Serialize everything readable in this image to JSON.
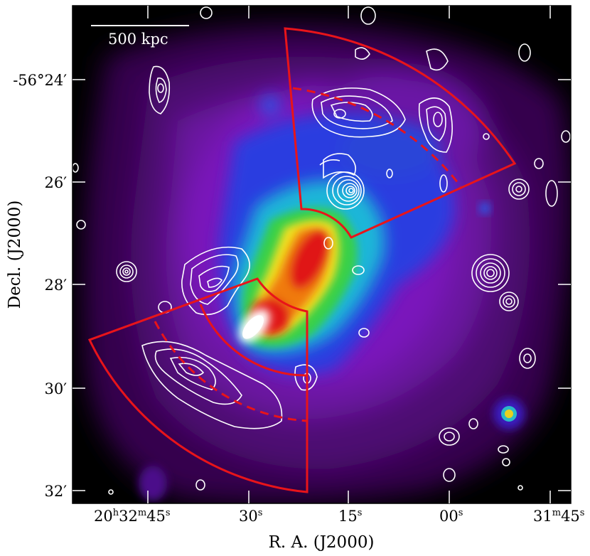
{
  "figure": {
    "scale_bar_label": "500 kpc",
    "x_axis_title": "R. A. (J2000)",
    "y_axis_title": "Decl. (J2000)",
    "ra_ticks": [
      {
        "h": "20",
        "m": "32",
        "s": "45",
        "prefix": "20h32m45s"
      },
      {
        "s": "30"
      },
      {
        "s": "15"
      },
      {
        "s": "00"
      },
      {
        "m": "31",
        "s": "45"
      }
    ],
    "dec_ticks": [
      "-56°24′",
      "26′",
      "28′",
      "30′",
      "32′"
    ],
    "ra_labels": {
      "first_h": "20",
      "first_m": "32",
      "first_s": "45",
      "l2": "30",
      "l3": "15",
      "l4": "00",
      "last_m": "31",
      "last_s": "45",
      "h": "h",
      "m": "m",
      "s": "s"
    },
    "colors": {
      "sector_outline": "#e8141a",
      "contours": "#ffffff",
      "background": "#000000",
      "halo": "#7a12b8"
    }
  }
}
